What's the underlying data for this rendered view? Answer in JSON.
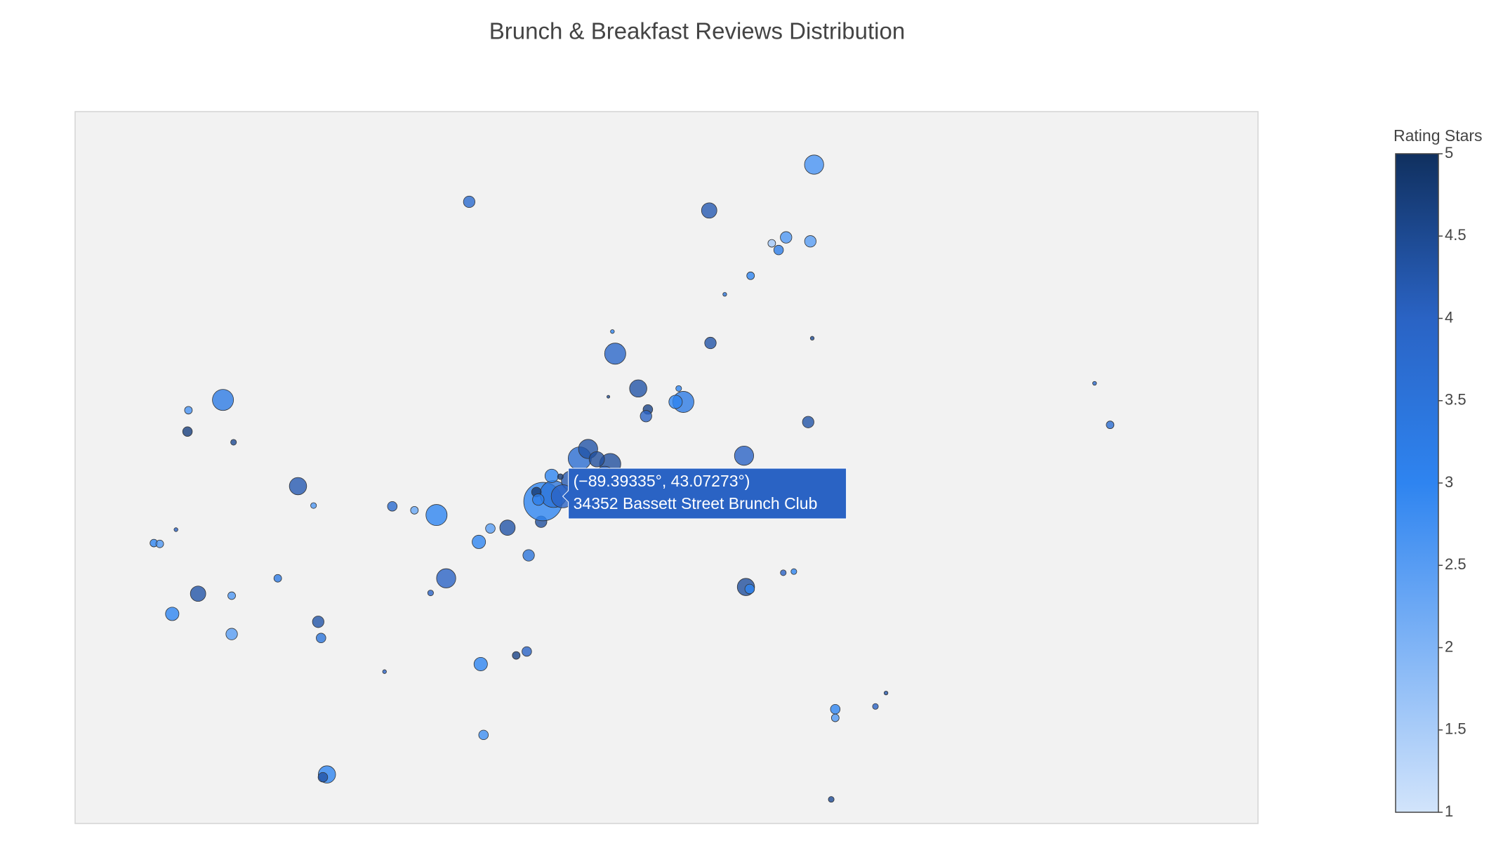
{
  "chart_data": {
    "type": "scattergeo",
    "title": "Brunch & Breakfast Reviews Distribution",
    "colorbar_title": "Rating Stars",
    "lonlim": [
      -89.55,
      -89.17
    ],
    "latlim": [
      42.99,
      43.17
    ],
    "lon": [
      -89.3126,
      -89.4234,
      -89.3463,
      -89.3216,
      -89.3262,
      -89.324,
      -89.3138,
      -89.333,
      -89.3413,
      -89.3459,
      -89.3774,
      -89.3765,
      -89.3132,
      -89.3691,
      -89.3787,
      -89.3561,
      -89.3546,
      -89.3571,
      -89.366,
      -89.3666,
      -89.3145,
      -89.2225,
      -89.2175,
      -89.5025,
      -89.5136,
      -89.5139,
      -89.4991,
      -89.4784,
      -89.4734,
      -89.4481,
      -89.441,
      -89.4339,
      -89.5176,
      -89.5247,
      -89.5228,
      -89.4166,
      -89.4111,
      -89.4203,
      -89.4043,
      -89.4003,
      -89.4849,
      -89.4308,
      -89.4358,
      -89.5105,
      -89.4997,
      -89.5188,
      -89.4719,
      -89.4997,
      -89.471,
      -89.3351,
      -89.3345,
      -89.3333,
      -89.3225,
      -89.3191,
      -89.4197,
      -89.4083,
      -89.4049,
      -89.4506,
      -89.4188,
      -89.3058,
      -89.3058,
      -89.2929,
      -89.2895,
      -89.4691,
      -89.4704,
      -89.3071,
      -89.3997,
      -89.3963,
      -89.3879,
      -89.3852,
      -89.3781,
      -89.3824,
      -89.3907,
      -89.3969,
      -89.3941,
      -89.4018,
      -89.39335,
      -89.3799,
      -89.3842,
      -89.4012
    ],
    "lat": [
      43.1566,
      43.1472,
      43.145,
      43.1382,
      43.1367,
      43.135,
      43.1372,
      43.1285,
      43.1238,
      43.1115,
      43.1144,
      43.1088,
      43.1127,
      43.1,
      43.0979,
      43.1,
      43.0966,
      43.0966,
      43.0947,
      43.093,
      43.0915,
      43.1013,
      43.0908,
      43.0971,
      43.0945,
      43.0891,
      43.0864,
      43.0753,
      43.0704,
      43.0702,
      43.0692,
      43.068,
      43.0643,
      43.0609,
      43.0607,
      43.0646,
      43.0648,
      43.0612,
      43.0578,
      43.0663,
      43.052,
      43.052,
      43.0483,
      43.0481,
      43.0476,
      43.043,
      43.041,
      43.0379,
      43.0369,
      43.083,
      43.0498,
      43.0493,
      43.0534,
      43.0537,
      43.0303,
      43.0325,
      43.0335,
      43.0284,
      43.0124,
      43.0189,
      43.0167,
      43.0196,
      43.023,
      43.0024,
      43.0017,
      42.9961,
      43.0714,
      43.0733,
      43.0823,
      43.0847,
      43.0809,
      43.0821,
      43.0767,
      43.0779,
      43.0777,
      43.0738,
      43.07273,
      43.0779,
      43.0755,
      43.0719
    ],
    "sizes": [
      20,
      12,
      16,
      12,
      8,
      10,
      12,
      8,
      4,
      12,
      4,
      22,
      4,
      18,
      3,
      6,
      22,
      14,
      10,
      12,
      12,
      4,
      8,
      22,
      8,
      10,
      6,
      18,
      6,
      10,
      8,
      22,
      4,
      8,
      8,
      10,
      16,
      14,
      12,
      12,
      8,
      20,
      6,
      16,
      8,
      14,
      12,
      12,
      10,
      20,
      18,
      10,
      6,
      6,
      14,
      8,
      10,
      4,
      10,
      10,
      8,
      6,
      4,
      18,
      10,
      6,
      40,
      28,
      24,
      20,
      22,
      16,
      20,
      14,
      6,
      10,
      24,
      20,
      18,
      12
    ],
    "ratings": [
      2.7,
      3.8,
      4.2,
      2.6,
      1.6,
      3.2,
      2.5,
      3.0,
      3.5,
      4.3,
      3.0,
      3.9,
      4.5,
      4.3,
      4.5,
      3.0,
      3.3,
      3.0,
      4.6,
      4.0,
      4.3,
      3.8,
      3.7,
      3.3,
      2.7,
      4.7,
      4.5,
      4.2,
      2.6,
      3.8,
      2.3,
      3.0,
      4.0,
      3.0,
      2.6,
      2.5,
      4.3,
      3.0,
      3.5,
      4.4,
      3.3,
      4.0,
      4.0,
      4.3,
      2.6,
      3.0,
      4.3,
      2.5,
      3.5,
      4.0,
      4.4,
      3.0,
      4.0,
      3.0,
      3.0,
      4.6,
      4.0,
      4.0,
      2.8,
      3.0,
      2.6,
      4.0,
      4.3,
      3.0,
      4.3,
      4.5,
      3.0,
      3.5,
      3.7,
      4.3,
      4.4,
      4.4,
      4.2,
      3.0,
      4.8,
      4.8,
      4.0,
      4.0,
      3.8,
      3.2
    ],
    "clim": [
      1,
      5
    ],
    "cticks": [
      1,
      1.5,
      2,
      2.5,
      3,
      3.5,
      4,
      4.5,
      5
    ],
    "colorscale": [
      [
        1,
        "#d2e4fb"
      ],
      [
        3,
        "#2e84f0"
      ],
      [
        4,
        "#2a63c4"
      ],
      [
        5,
        "#10305f"
      ]
    ],
    "hover": {
      "point": 76,
      "label": "(−89.39335°, 43.07273°)",
      "name": "34352 Bassett Street Brunch Club"
    }
  }
}
